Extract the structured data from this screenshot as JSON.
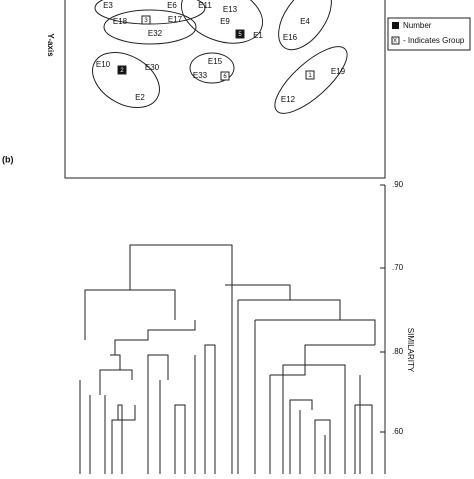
{
  "figure": {
    "panel_label": "(b)",
    "scatter": {
      "axis_label": "Y-axis",
      "points": [
        "E3",
        "E6",
        "E11",
        "E13",
        "E9",
        "E1",
        "E4",
        "E18",
        "E17",
        "E32",
        "E16",
        "E10",
        "E30",
        "E2",
        "E15",
        "E33",
        "E19",
        "E12"
      ],
      "groups": [
        "3",
        "5",
        "2",
        "6",
        "1"
      ],
      "legend": {
        "symbol": "X",
        "line1": "Number",
        "line2": "- Indicates Group"
      }
    },
    "dendrogram": {
      "axis_label": "SIMILARITY",
      "ticks": [
        ".90",
        ".70",
        ".80",
        ".60"
      ]
    }
  }
}
